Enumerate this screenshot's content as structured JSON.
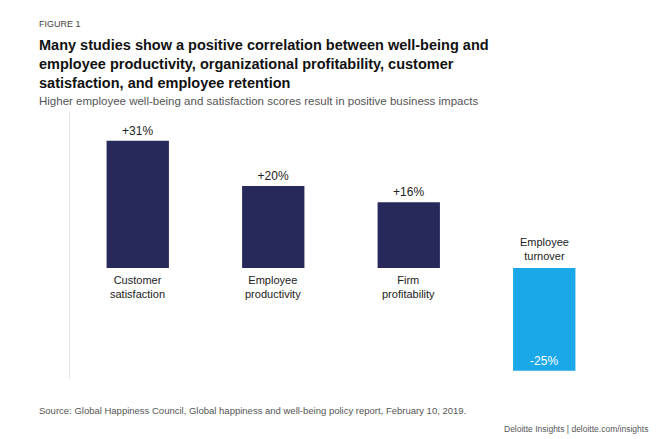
{
  "chart_data": {
    "type": "bar",
    "label": "FIGURE 1",
    "title": "Many studies show a positive correlation between well-being and employee productivity, organizational profitability, customer satisfaction, and employee retention",
    "subtitle": "Higher employee well-being and satisfaction scores result in positive business impacts",
    "categories": [
      "Customer satisfaction",
      "Employee productivity",
      "Firm profitability",
      "Employee turnover"
    ],
    "values": [
      31,
      20,
      16,
      -25
    ],
    "value_labels": [
      "+31%",
      "+20%",
      "+16%",
      "-25%"
    ],
    "colors": [
      "#26295a",
      "#26295a",
      "#26295a",
      "#1aa8e8"
    ],
    "data_labels": true,
    "tick_labels": false,
    "grid": false,
    "ylim": [
      -27,
      38
    ],
    "source": "Source: Global Happiness Council, Global happiness and well-being policy report, February 10, 2019.",
    "credit": "Deloitte Insights | deloitte.com/insights"
  }
}
